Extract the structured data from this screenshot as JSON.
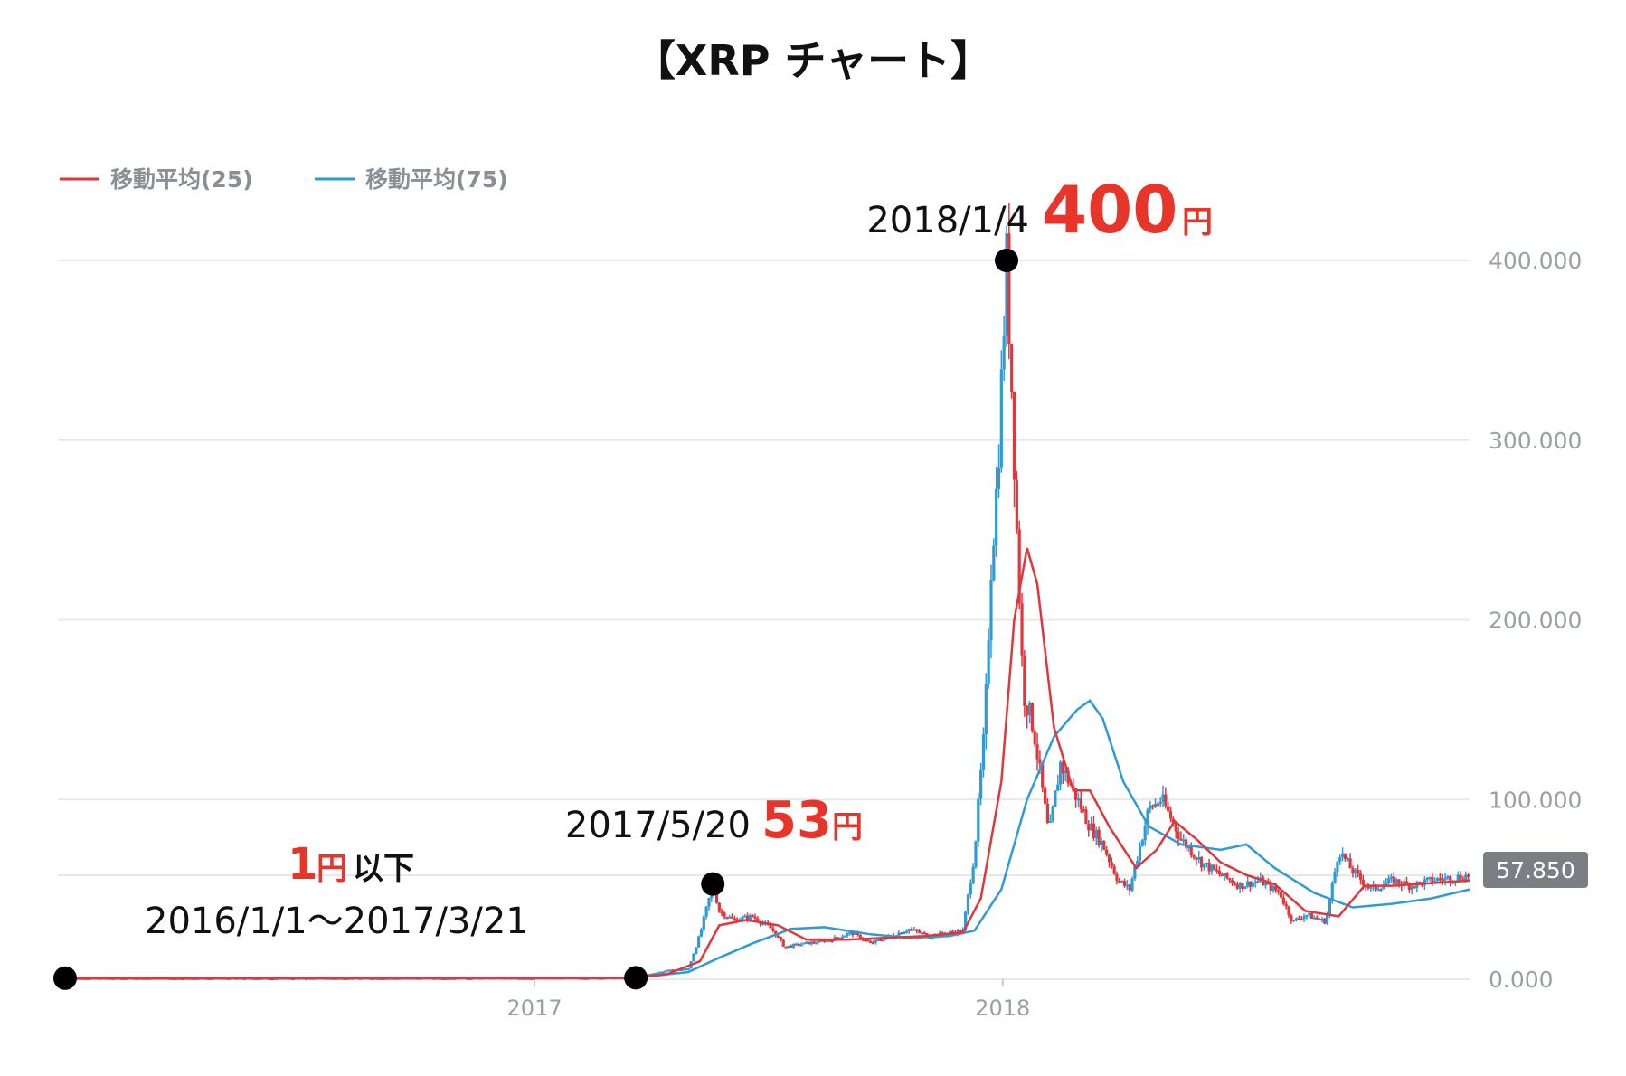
{
  "chart_data": {
    "type": "line",
    "title": "【XRP チャート】",
    "legend": [
      {
        "name": "移動平均(25)",
        "color": "#e0363c"
      },
      {
        "name": "移動平均(75)",
        "color": "#2f9bd6"
      }
    ],
    "legend_position": "top-left",
    "y_ticks": [
      "0.000",
      "100.000",
      "200.000",
      "300.000",
      "400.000"
    ],
    "ylim": [
      0,
      400
    ],
    "x_ticks": [
      {
        "label": "2017",
        "date": "2017-01-01"
      },
      {
        "label": "2018",
        "date": "2018-01-01"
      }
    ],
    "xlim": [
      "2016-01-01",
      "2018-12-31"
    ],
    "grid": true,
    "last_price": "57.850",
    "candle_colors": {
      "up": "#2f9bd6",
      "down": "#e0363c"
    },
    "price": [
      [
        "2016-01-01",
        0.6
      ],
      [
        "2016-06-01",
        0.6
      ],
      [
        "2016-12-01",
        0.7
      ],
      [
        "2017-03-21",
        0.8
      ],
      [
        "2017-04-01",
        3
      ],
      [
        "2017-04-15",
        5
      ],
      [
        "2017-05-01",
        6
      ],
      [
        "2017-05-10",
        25
      ],
      [
        "2017-05-20",
        53
      ],
      [
        "2017-05-25",
        38
      ],
      [
        "2017-06-05",
        33
      ],
      [
        "2017-06-20",
        35
      ],
      [
        "2017-07-05",
        28
      ],
      [
        "2017-07-15",
        18
      ],
      [
        "2017-08-01",
        20
      ],
      [
        "2017-08-20",
        22
      ],
      [
        "2017-09-05",
        26
      ],
      [
        "2017-09-20",
        20
      ],
      [
        "2017-10-05",
        24
      ],
      [
        "2017-10-20",
        28
      ],
      [
        "2017-11-05",
        24
      ],
      [
        "2017-11-20",
        26
      ],
      [
        "2017-12-01",
        27
      ],
      [
        "2017-12-10",
        70
      ],
      [
        "2017-12-18",
        140
      ],
      [
        "2017-12-23",
        230
      ],
      [
        "2017-12-28",
        280
      ],
      [
        "2018-01-04",
        400
      ],
      [
        "2018-01-08",
        330
      ],
      [
        "2018-01-12",
        250
      ],
      [
        "2018-01-17",
        160
      ],
      [
        "2018-01-25",
        140
      ],
      [
        "2018-02-06",
        80
      ],
      [
        "2018-02-15",
        120
      ],
      [
        "2018-02-25",
        105
      ],
      [
        "2018-03-10",
        85
      ],
      [
        "2018-03-20",
        75
      ],
      [
        "2018-04-01",
        55
      ],
      [
        "2018-04-10",
        50
      ],
      [
        "2018-04-25",
        95
      ],
      [
        "2018-05-05",
        100
      ],
      [
        "2018-05-20",
        78
      ],
      [
        "2018-06-05",
        65
      ],
      [
        "2018-06-20",
        58
      ],
      [
        "2018-07-05",
        52
      ],
      [
        "2018-07-20",
        55
      ],
      [
        "2018-08-05",
        48
      ],
      [
        "2018-08-15",
        32
      ],
      [
        "2018-08-25",
        36
      ],
      [
        "2018-09-10",
        32
      ],
      [
        "2018-09-20",
        72
      ],
      [
        "2018-10-01",
        60
      ],
      [
        "2018-10-15",
        50
      ],
      [
        "2018-11-01",
        55
      ],
      [
        "2018-11-15",
        52
      ],
      [
        "2018-12-01",
        55
      ],
      [
        "2018-12-31",
        57.85
      ]
    ],
    "ma25": [
      [
        "2016-01-01",
        0.6
      ],
      [
        "2017-03-21",
        0.8
      ],
      [
        "2017-04-15",
        3
      ],
      [
        "2017-05-10",
        10
      ],
      [
        "2017-05-25",
        30
      ],
      [
        "2017-06-15",
        33
      ],
      [
        "2017-07-10",
        30
      ],
      [
        "2017-08-01",
        22
      ],
      [
        "2017-09-01",
        22
      ],
      [
        "2017-10-01",
        23
      ],
      [
        "2017-11-01",
        24
      ],
      [
        "2017-12-01",
        26
      ],
      [
        "2017-12-15",
        45
      ],
      [
        "2017-12-31",
        110
      ],
      [
        "2018-01-10",
        200
      ],
      [
        "2018-01-20",
        240
      ],
      [
        "2018-01-28",
        220
      ],
      [
        "2018-02-10",
        140
      ],
      [
        "2018-02-25",
        105
      ],
      [
        "2018-03-10",
        105
      ],
      [
        "2018-03-25",
        85
      ],
      [
        "2018-04-15",
        62
      ],
      [
        "2018-05-01",
        72
      ],
      [
        "2018-05-15",
        88
      ],
      [
        "2018-06-01",
        78
      ],
      [
        "2018-06-20",
        65
      ],
      [
        "2018-07-10",
        58
      ],
      [
        "2018-08-01",
        53
      ],
      [
        "2018-08-25",
        38
      ],
      [
        "2018-09-20",
        35
      ],
      [
        "2018-10-10",
        52
      ],
      [
        "2018-11-01",
        52
      ],
      [
        "2018-12-31",
        55
      ]
    ],
    "ma75": [
      [
        "2016-01-01",
        0.6
      ],
      [
        "2017-03-21",
        0.8
      ],
      [
        "2017-05-01",
        4
      ],
      [
        "2017-05-25",
        12
      ],
      [
        "2017-06-20",
        20
      ],
      [
        "2017-07-20",
        28
      ],
      [
        "2017-08-15",
        29
      ],
      [
        "2017-09-20",
        25
      ],
      [
        "2017-10-20",
        23
      ],
      [
        "2017-11-20",
        24
      ],
      [
        "2017-12-10",
        27
      ],
      [
        "2017-12-31",
        50
      ],
      [
        "2018-01-20",
        100
      ],
      [
        "2018-02-10",
        135
      ],
      [
        "2018-02-28",
        150
      ],
      [
        "2018-03-10",
        155
      ],
      [
        "2018-03-20",
        145
      ],
      [
        "2018-04-05",
        110
      ],
      [
        "2018-04-25",
        85
      ],
      [
        "2018-05-20",
        75
      ],
      [
        "2018-06-20",
        72
      ],
      [
        "2018-07-10",
        75
      ],
      [
        "2018-08-01",
        62
      ],
      [
        "2018-09-01",
        48
      ],
      [
        "2018-10-01",
        40
      ],
      [
        "2018-11-01",
        42
      ],
      [
        "2018-12-01",
        45
      ],
      [
        "2018-12-31",
        50
      ]
    ],
    "annotations": [
      {
        "date": "2016-01-01",
        "value": 0.6,
        "lines": []
      },
      {
        "date": "2017-03-21",
        "value": 0.8,
        "label_date": "2016/1/1〜2017/3/21",
        "label_value": "1",
        "label_unit": "円",
        "label_suffix": "以下"
      },
      {
        "date": "2017-05-20",
        "value": 53,
        "label_date": "2017/5/20",
        "label_value": "53",
        "label_unit": "円"
      },
      {
        "date": "2018-01-04",
        "value": 400,
        "label_date": "2018/1/4",
        "label_value": "400",
        "label_unit": "円"
      }
    ]
  }
}
